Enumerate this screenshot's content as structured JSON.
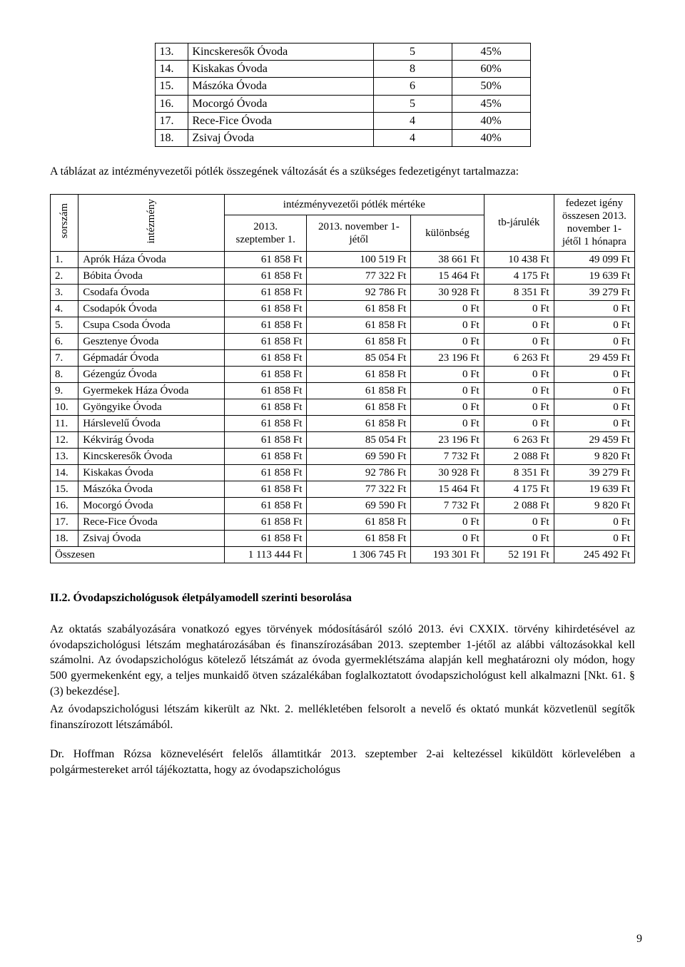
{
  "small_table": {
    "rows": [
      {
        "n": "13.",
        "name": "Kincskeresők Óvoda",
        "a": "5",
        "b": "45%"
      },
      {
        "n": "14.",
        "name": "Kiskakas Óvoda",
        "a": "8",
        "b": "60%"
      },
      {
        "n": "15.",
        "name": "Mászóka Óvoda",
        "a": "6",
        "b": "50%"
      },
      {
        "n": "16.",
        "name": "Mocorgó Óvoda",
        "a": "5",
        "b": "45%"
      },
      {
        "n": "17.",
        "name": "Rece-Fice Óvoda",
        "a": "4",
        "b": "40%"
      },
      {
        "n": "18.",
        "name": "Zsivaj Óvoda",
        "a": "4",
        "b": "40%"
      }
    ]
  },
  "intro_para": "A táblázat az intézményvezetői pótlék összegének változását és a szükséges fedezetigényt tartalmazza:",
  "big_table": {
    "head": {
      "sorszam": "sorszám",
      "intezmeny": "intézmény",
      "mertek": "intézményvezetői pótlék mértéke",
      "c2": "2013. szeptember 1.",
      "c3": "2013. november 1-jétől",
      "c4": "különbség",
      "c5": "tb-járulék",
      "c6": "fedezet igény összesen 2013. november 1-jétől 1 hónapra"
    },
    "rows": [
      {
        "n": "1.",
        "name": "Aprók Háza Óvoda",
        "c2": "61 858 Ft",
        "c3": "100 519 Ft",
        "c4": "38 661 Ft",
        "c5": "10 438 Ft",
        "c6": "49 099 Ft"
      },
      {
        "n": "2.",
        "name": "Bóbita Óvoda",
        "c2": "61 858 Ft",
        "c3": "77 322 Ft",
        "c4": "15 464 Ft",
        "c5": "4 175 Ft",
        "c6": "19 639 Ft"
      },
      {
        "n": "3.",
        "name": "Csodafa Óvoda",
        "c2": "61 858 Ft",
        "c3": "92 786 Ft",
        "c4": "30 928 Ft",
        "c5": "8 351 Ft",
        "c6": "39 279 Ft"
      },
      {
        "n": "4.",
        "name": "Csodapók Óvoda",
        "c2": "61 858 Ft",
        "c3": "61 858 Ft",
        "c4": "0 Ft",
        "c5": "0 Ft",
        "c6": "0 Ft"
      },
      {
        "n": "5.",
        "name": "Csupa Csoda Óvoda",
        "c2": "61 858 Ft",
        "c3": "61 858 Ft",
        "c4": "0 Ft",
        "c5": "0 Ft",
        "c6": "0 Ft"
      },
      {
        "n": "6.",
        "name": "Gesztenye Óvoda",
        "c2": "61 858 Ft",
        "c3": "61 858 Ft",
        "c4": "0 Ft",
        "c5": "0 Ft",
        "c6": "0 Ft"
      },
      {
        "n": "7.",
        "name": "Gépmadár Óvoda",
        "c2": "61 858 Ft",
        "c3": "85 054 Ft",
        "c4": "23 196 Ft",
        "c5": "6 263 Ft",
        "c6": "29 459 Ft"
      },
      {
        "n": "8.",
        "name": "Gézengúz Óvoda",
        "c2": "61 858 Ft",
        "c3": "61 858 Ft",
        "c4": "0 Ft",
        "c5": "0 Ft",
        "c6": "0 Ft"
      },
      {
        "n": "9.",
        "name": "Gyermekek Háza Óvoda",
        "c2": "61 858 Ft",
        "c3": "61 858 Ft",
        "c4": "0 Ft",
        "c5": "0 Ft",
        "c6": "0 Ft"
      },
      {
        "n": "10.",
        "name": "Gyöngyike Óvoda",
        "c2": "61 858 Ft",
        "c3": "61 858 Ft",
        "c4": "0 Ft",
        "c5": "0 Ft",
        "c6": "0 Ft"
      },
      {
        "n": "11.",
        "name": "Hárslevelű Óvoda",
        "c2": "61 858 Ft",
        "c3": "61 858 Ft",
        "c4": "0 Ft",
        "c5": "0 Ft",
        "c6": "0 Ft"
      },
      {
        "n": "12.",
        "name": "Kékvirág Óvoda",
        "c2": "61 858 Ft",
        "c3": "85 054 Ft",
        "c4": "23 196 Ft",
        "c5": "6 263 Ft",
        "c6": "29 459 Ft"
      },
      {
        "n": "13.",
        "name": "Kincskeresők Óvoda",
        "c2": "61 858 Ft",
        "c3": "69 590 Ft",
        "c4": "7 732 Ft",
        "c5": "2 088 Ft",
        "c6": "9 820 Ft"
      },
      {
        "n": "14.",
        "name": "Kiskakas Óvoda",
        "c2": "61 858 Ft",
        "c3": "92 786 Ft",
        "c4": "30 928 Ft",
        "c5": "8 351 Ft",
        "c6": "39 279 Ft"
      },
      {
        "n": "15.",
        "name": "Mászóka Óvoda",
        "c2": "61 858 Ft",
        "c3": "77 322 Ft",
        "c4": "15 464 Ft",
        "c5": "4 175 Ft",
        "c6": "19 639 Ft"
      },
      {
        "n": "16.",
        "name": "Mocorgó Óvoda",
        "c2": "61 858 Ft",
        "c3": "69 590 Ft",
        "c4": "7 732 Ft",
        "c5": "2 088 Ft",
        "c6": "9 820 Ft"
      },
      {
        "n": "17.",
        "name": "Rece-Fice Óvoda",
        "c2": "61 858 Ft",
        "c3": "61 858 Ft",
        "c4": "0 Ft",
        "c5": "0 Ft",
        "c6": "0 Ft"
      },
      {
        "n": "18.",
        "name": "Zsivaj Óvoda",
        "c2": "61 858 Ft",
        "c3": "61 858 Ft",
        "c4": "0 Ft",
        "c5": "0 Ft",
        "c6": "0 Ft"
      }
    ],
    "total": {
      "label": "Összesen",
      "c2": "1 113 444 Ft",
      "c3": "1 306 745 Ft",
      "c4": "193 301 Ft",
      "c5": "52 191 Ft",
      "c6": "245 492 Ft"
    }
  },
  "section_heading": "II.2. Óvodapszichológusok életpályamodell szerinti besorolása",
  "body1": "Az oktatás szabályozására vonatkozó egyes törvények módosításáról szóló 2013. évi CXXIX. törvény kihirdetésével az óvodapszichológusi létszám meghatározásában és finanszírozásában 2013. szeptember 1-jétől az alábbi változásokkal kell számolni. Az óvodapszichológus kötelező létszámát az óvoda gyermeklétszáma alapján kell meghatározni oly módon, hogy 500 gyermekenként egy, a teljes munkaidő ötven százalékában foglalkoztatott óvodapszichológust kell alkalmazni [Nkt. 61. § (3) bekezdése].",
  "body2": "Az óvodapszichológusi létszám kikerült az Nkt. 2. mellékletében felsorolt a nevelő és oktató munkát közvetlenül segítők finanszírozott létszámából.",
  "body3": "Dr. Hoffman Rózsa köznevelésért felelős államtitkár 2013. szeptember 2-ai keltezéssel kiküldött körlevelében a polgármestereket arról tájékoztatta, hogy az óvodapszichológus",
  "page_number": "9"
}
